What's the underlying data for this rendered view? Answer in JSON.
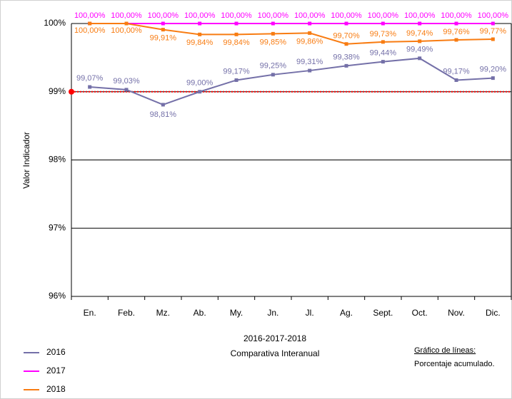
{
  "chart_data": {
    "type": "line",
    "ylabel": "Valor Indicador",
    "xlabel": "2016-2017-2018",
    "subtitle": "Comparativa Interanual",
    "annotations": [
      "Gráfico de líneas:",
      "Porcentaje acumulado."
    ],
    "categories": [
      "En.",
      "Feb.",
      "Mz.",
      "Ab.",
      "My.",
      "Jn.",
      "Jl.",
      "Ag.",
      "Sept.",
      "Oct.",
      "Nov.",
      "Dic."
    ],
    "series": [
      {
        "name": "2016",
        "color": "#7470a8",
        "values": [
          99.07,
          99.03,
          98.81,
          99.0,
          99.17,
          99.25,
          99.31,
          99.38,
          99.44,
          99.49,
          99.17,
          99.2
        ],
        "value_labels": [
          "99,07%",
          "99,03%",
          "98,81%",
          "99,00%",
          "99,17%",
          "99,25%",
          "99,31%",
          "99,38%",
          "99,44%",
          "99,49%",
          "99,17%",
          "99,20%"
        ]
      },
      {
        "name": "2017",
        "color": "#ff00ff",
        "values": [
          100.0,
          100.0,
          100.0,
          100.0,
          100.0,
          100.0,
          100.0,
          100.0,
          100.0,
          100.0,
          100.0,
          100.0
        ],
        "value_labels": [
          "100,00%",
          "100,00%",
          "100,00%",
          "100,00%",
          "100,00%",
          "100,00%",
          "100,00%",
          "100,00%",
          "100,00%",
          "100,00%",
          "100,00%",
          "100,00%"
        ]
      },
      {
        "name": "2018",
        "color": "#f87c12",
        "values": [
          100.0,
          100.0,
          99.91,
          99.84,
          99.84,
          99.85,
          99.86,
          99.7,
          99.73,
          99.74,
          99.76,
          99.77
        ],
        "value_labels": [
          "100,00%",
          "100,00%",
          "99,91%",
          "99,84%",
          "99,84%",
          "99,85%",
          "99,86%",
          "99,70%",
          "99,73%",
          "99,74%",
          "99,76%",
          "99,77%"
        ]
      }
    ],
    "target": {
      "value": 99,
      "color": "#ff0000"
    },
    "ylim": [
      96,
      100
    ],
    "yticks": [
      {
        "value": 96,
        "label": "96%"
      },
      {
        "value": 97,
        "label": "97%"
      },
      {
        "value": 98,
        "label": "98%"
      },
      {
        "value": 99,
        "label": "99%"
      },
      {
        "value": 100,
        "label": "100%"
      }
    ],
    "grid": true,
    "legend": "bottom-left"
  }
}
